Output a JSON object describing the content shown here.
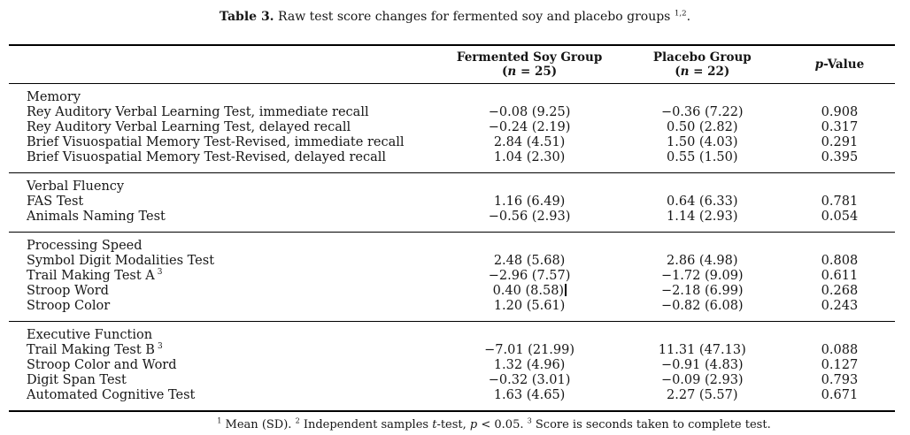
{
  "colors": {
    "background": "#ffffff",
    "text": "#161616",
    "rule": "#000000"
  },
  "caption": {
    "label": "Table 3.",
    "text": " Raw test score changes for fermented soy and placebo groups ",
    "sup": "1,2",
    "period": "."
  },
  "header": {
    "soy": {
      "title": "Fermented Soy Group",
      "paren": "(",
      "n": "n",
      "rest": " = 25)"
    },
    "placebo": {
      "title": "Placebo Group",
      "paren": "(",
      "n": "n",
      "rest": " = 22)"
    },
    "p": {
      "italic": "p",
      "rest": "-Value"
    }
  },
  "sections": [
    {
      "name": "Memory",
      "rows": [
        {
          "label": "Rey Auditory Verbal Learning Test, immediate recall",
          "soy": "−0.08 (9.25)",
          "placebo": "−0.36 (7.22)",
          "p": "0.908"
        },
        {
          "label": "Rey Auditory Verbal Learning Test, delayed recall",
          "soy": "−0.24 (2.19)",
          "placebo": "0.50 (2.82)",
          "p": "0.317"
        },
        {
          "label": "Brief Visuospatial Memory Test-Revised, immediate recall",
          "soy": "2.84 (4.51)",
          "placebo": "1.50 (4.03)",
          "p": "0.291"
        },
        {
          "label": "Brief Visuospatial Memory Test-Revised, delayed recall",
          "soy": "1.04 (2.30)",
          "placebo": "0.55 (1.50)",
          "p": "0.395"
        }
      ]
    },
    {
      "name": "Verbal Fluency",
      "rows": [
        {
          "label": "FAS Test",
          "soy": "1.16 (6.49)",
          "placebo": "0.64 (6.33)",
          "p": "0.781"
        },
        {
          "label": "Animals Naming Test",
          "soy": "−0.56 (2.93)",
          "placebo": "1.14 (2.93)",
          "p": "0.054"
        }
      ]
    },
    {
      "name": "Processing Speed",
      "rows": [
        {
          "label": "Symbol Digit Modalities Test",
          "soy": "2.48 (5.68)",
          "placebo": "2.86 (4.98)",
          "p": "0.808"
        },
        {
          "label": "Trail Making Test A",
          "sup": "3",
          "soy": "−2.96 (7.57)",
          "placebo": "−1.72 (9.09)",
          "p": "0.611"
        },
        {
          "label": "Stroop Word",
          "soy": "0.40 (8.58)",
          "caret": true,
          "placebo": "−2.18 (6.99)",
          "p": "0.268"
        },
        {
          "label": "Stroop Color",
          "soy": "1.20 (5.61)",
          "placebo": "−0.82 (6.08)",
          "p": "0.243"
        }
      ]
    },
    {
      "name": "Executive Function",
      "rows": [
        {
          "label": "Trail Making Test B",
          "sup": "3",
          "soy": "−7.01 (21.99)",
          "placebo": "11.31 (47.13)",
          "p": "0.088"
        },
        {
          "label": "Stroop Color and Word",
          "soy": "1.32 (4.96)",
          "placebo": "−0.91 (4.83)",
          "p": "0.127"
        },
        {
          "label": "Digit Span Test",
          "soy": "−0.32 (3.01)",
          "placebo": "−0.09 (2.93)",
          "p": "0.793"
        },
        {
          "label": "Automated Cognitive Test",
          "soy": "1.63 (4.65)",
          "placebo": "2.27 (5.57)",
          "p": "0.671"
        }
      ]
    }
  ],
  "footnote": {
    "sup1": "1",
    "seg1": " Mean (SD). ",
    "sup2": "2",
    "seg2": " Independent samples ",
    "t": "t",
    "seg3": "-test, ",
    "p": "p",
    "seg4": " < 0.05. ",
    "sup3": "3",
    "seg5": " Score is seconds taken to complete test."
  }
}
